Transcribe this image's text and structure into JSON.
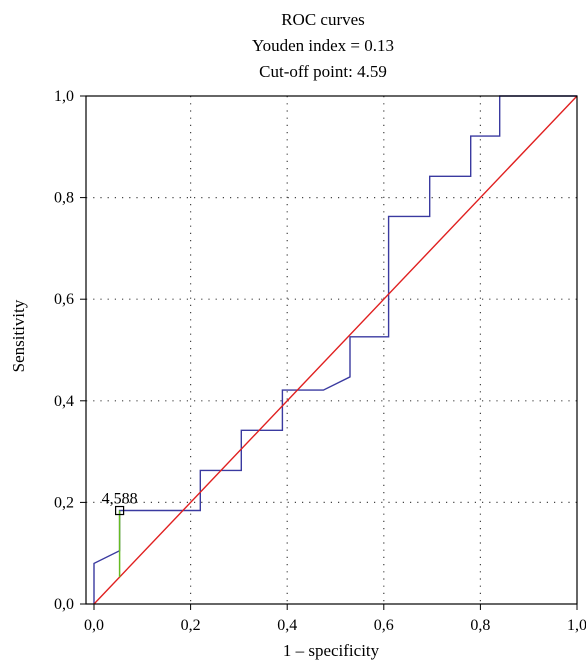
{
  "chart_data": {
    "type": "line",
    "title": "ROC curves",
    "subtitle_lines": [
      "Youden index = 0.13",
      "Cut-off point: 4.59"
    ],
    "xlabel": "1 – specificity",
    "ylabel": "Sensitivity",
    "xlim": [
      0,
      1
    ],
    "ylim": [
      0,
      1
    ],
    "x_ticks": [
      0,
      0.2,
      0.4,
      0.6,
      0.8,
      1.0
    ],
    "x_tick_labels": [
      "0,0",
      "0,2",
      "0,4",
      "0,6",
      "0,8",
      "1,0"
    ],
    "y_ticks": [
      0,
      0.2,
      0.4,
      0.6,
      0.8,
      1.0
    ],
    "y_tick_labels": [
      "0,0",
      "0,2",
      "0,4",
      "0,6",
      "0,8",
      "1,0"
    ],
    "grid": true,
    "series": [
      {
        "color": "#3a3aa0",
        "style": "step",
        "points": [
          [
            0.0,
            0.0
          ],
          [
            0.0,
            0.08
          ],
          [
            0.053,
            0.105
          ],
          [
            0.053,
            0.184
          ],
          [
            0.22,
            0.184
          ],
          [
            0.22,
            0.263
          ],
          [
            0.305,
            0.263
          ],
          [
            0.305,
            0.342
          ],
          [
            0.39,
            0.342
          ],
          [
            0.39,
            0.421
          ],
          [
            0.475,
            0.421
          ],
          [
            0.53,
            0.447
          ],
          [
            0.53,
            0.526
          ],
          [
            0.61,
            0.526
          ],
          [
            0.61,
            0.763
          ],
          [
            0.695,
            0.763
          ],
          [
            0.695,
            0.842
          ],
          [
            0.78,
            0.842
          ],
          [
            0.78,
            0.921
          ],
          [
            0.84,
            0.921
          ],
          [
            0.84,
            1.0
          ],
          [
            1.0,
            1.0
          ]
        ]
      },
      {
        "color": "#e02020",
        "style": "line",
        "points": [
          [
            0,
            0
          ],
          [
            1,
            1
          ]
        ]
      }
    ],
    "youden": {
      "x": 0.053,
      "y_low": 0.053,
      "y_high": 0.184,
      "color": "#66bb22",
      "label": "4,588"
    }
  }
}
